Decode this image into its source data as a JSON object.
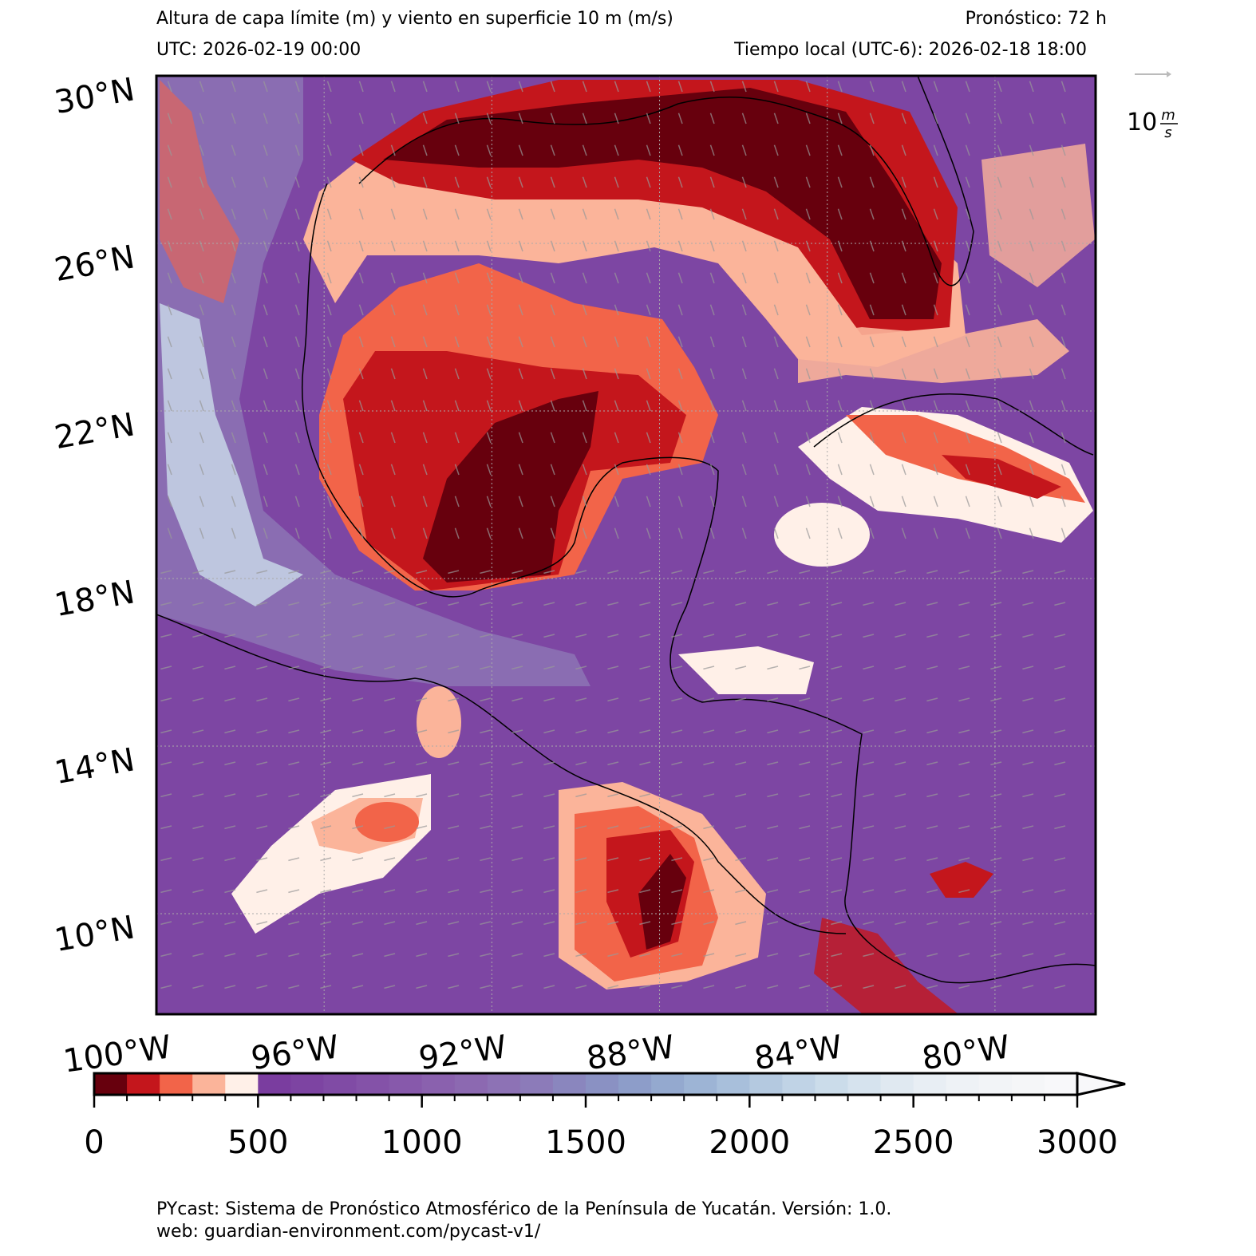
{
  "header": {
    "title": "Altura de capa límite (m) y viento en superficie 10 m (m/s)",
    "forecast": "Pronóstico: 72 h",
    "utc": "UTC:  2026-02-19 00:00",
    "local": "Tiempo local (UTC-6): 2026-02-18 18:00"
  },
  "map": {
    "xlim": [
      -100,
      -77.6
    ],
    "ylim": [
      7.6,
      30
    ],
    "lat_ticks": [
      {
        "value": 30,
        "label": "30°N"
      },
      {
        "value": 26,
        "label": "26°N"
      },
      {
        "value": 22,
        "label": "22°N"
      },
      {
        "value": 18,
        "label": "18°N"
      },
      {
        "value": 14,
        "label": "14°N"
      },
      {
        "value": 10,
        "label": "10°N"
      }
    ],
    "lon_ticks": [
      {
        "value": -100,
        "label": "100°W"
      },
      {
        "value": -96,
        "label": "96°W"
      },
      {
        "value": -92,
        "label": "92°W"
      },
      {
        "value": -88,
        "label": "88°W"
      },
      {
        "value": -84,
        "label": "84°W"
      },
      {
        "value": -80,
        "label": "80°W"
      }
    ],
    "wind_key": {
      "value": "10",
      "unit_top": "m",
      "unit_bottom": "s"
    }
  },
  "colorbar": {
    "lim": [
      0,
      3000
    ],
    "ticks": [
      0,
      500,
      1000,
      1500,
      2000,
      2500,
      3000
    ],
    "colors": [
      "#67000d",
      "#c4161c",
      "#f26449",
      "#fbb49a",
      "#fff0e8",
      "#7a3d9f",
      "#7d44a2",
      "#804ba5",
      "#8452a8",
      "#8759ab",
      "#8a61ae",
      "#8c69b1",
      "#8d72b5",
      "#8c7bb9",
      "#8a86be",
      "#8a91c3",
      "#8d9dc9",
      "#94a9cf",
      "#9db4d5",
      "#a8bfdb",
      "#b4c9e0",
      "#c0d3e6",
      "#cbdcea",
      "#d6e3ee",
      "#e0e9f1",
      "#e8eef4",
      "#eef2f6",
      "#f2f4f7",
      "#f5f6f8",
      "#f8f8fa"
    ]
  },
  "footer": {
    "line1": "PYcast: Sistema de Pronóstico Atmosférico de la Península de Yucatán. Versión: 1.0.",
    "line2": "web: guardian-environment.com/pycast-v1/"
  }
}
